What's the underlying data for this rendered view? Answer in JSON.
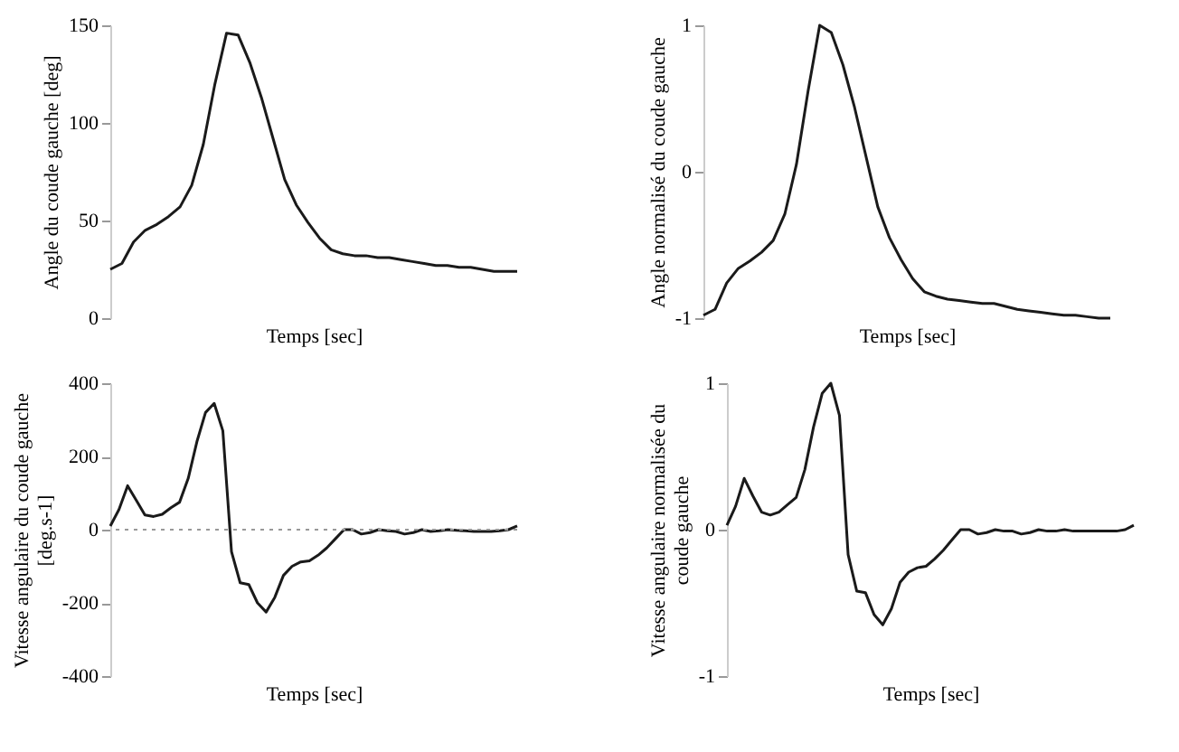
{
  "chart_data": [
    {
      "type": "line",
      "xlabel": "Temps [sec]",
      "ylabel": "Angle du coude gauche [deg]",
      "tick_labels": "y",
      "grid": false,
      "color": "#1a1a1a",
      "ylim": [
        0,
        150
      ],
      "yticks": [
        0,
        50,
        100,
        150
      ],
      "categories": [
        null,
        null,
        null,
        null,
        null,
        null,
        null,
        null,
        null,
        null,
        null,
        null,
        null,
        null,
        null,
        null,
        null,
        null,
        null,
        null,
        null,
        null,
        null,
        null,
        null,
        null,
        null,
        null,
        null,
        null,
        null,
        null,
        null,
        null,
        null,
        null
      ],
      "values": [
        25,
        28,
        39,
        45,
        48,
        52,
        57,
        68,
        89,
        120,
        146,
        145,
        131,
        113,
        92,
        71,
        58,
        49,
        41,
        35,
        33,
        32,
        32,
        31,
        31,
        30,
        29,
        28,
        27,
        27,
        26,
        26,
        25,
        24,
        24,
        24
      ]
    },
    {
      "type": "line",
      "xlabel": "Temps [sec]",
      "ylabel": "Angle normalisé du coude gauche",
      "tick_labels": "y",
      "grid": false,
      "color": "#1a1a1a",
      "ylim": [
        -1,
        1
      ],
      "yticks": [
        -1,
        0,
        1
      ],
      "categories": [
        null,
        null,
        null,
        null,
        null,
        null,
        null,
        null,
        null,
        null,
        null,
        null,
        null,
        null,
        null,
        null,
        null,
        null,
        null,
        null,
        null,
        null,
        null,
        null,
        null,
        null,
        null,
        null,
        null,
        null,
        null,
        null,
        null,
        null,
        null,
        null
      ],
      "values": [
        -0.98,
        -0.94,
        -0.76,
        -0.66,
        -0.61,
        -0.55,
        -0.47,
        -0.29,
        0.05,
        0.55,
        1.0,
        0.95,
        0.73,
        0.44,
        0.1,
        -0.24,
        -0.45,
        -0.6,
        -0.73,
        -0.82,
        -0.85,
        -0.87,
        -0.88,
        -0.89,
        -0.9,
        -0.9,
        -0.92,
        -0.94,
        -0.95,
        -0.96,
        -0.97,
        -0.98,
        -0.98,
        -0.99,
        -1,
        -1
      ]
    },
    {
      "type": "line",
      "xlabel": "Temps [sec]",
      "ylabel": "Vitesse angulaire du coude gauche\n[deg.s-1]",
      "tick_labels": "y",
      "grid": false,
      "color": "#1a1a1a",
      "ylim": [
        -400,
        400
      ],
      "yticks": [
        -400,
        -200,
        0,
        200,
        400
      ],
      "ref_lines": [
        {
          "axis": "y",
          "value": 0,
          "color": "#999999",
          "line_style": "dotted"
        }
      ],
      "categories": [
        null,
        null,
        null,
        null,
        null,
        null,
        null,
        null,
        null,
        null,
        null,
        null,
        null,
        null,
        null,
        null,
        null,
        null,
        null,
        null,
        null,
        null,
        null,
        null,
        null,
        null,
        null,
        null,
        null,
        null,
        null,
        null,
        null,
        null,
        null,
        null,
        null,
        null,
        null,
        null,
        null,
        null,
        null,
        null,
        null,
        null,
        null,
        null
      ],
      "values": [
        10,
        55,
        120,
        80,
        40,
        36,
        42,
        60,
        75,
        140,
        240,
        320,
        345,
        270,
        -60,
        -145,
        -150,
        -200,
        -225,
        -185,
        -125,
        -100,
        -88,
        -85,
        -70,
        -50,
        -25,
        0,
        0,
        -12,
        -8,
        0,
        -3,
        -5,
        -12,
        -8,
        0,
        -5,
        -3,
        0,
        -2,
        -3,
        -5,
        -5,
        -5,
        -3,
        0,
        10
      ]
    },
    {
      "type": "line",
      "xlabel": "Temps [sec]",
      "ylabel": "Vitesse angulaire normalisée du\ncoude gauche",
      "tick_labels": "y",
      "grid": false,
      "color": "#1a1a1a",
      "ylim": [
        -1,
        1
      ],
      "yticks": [
        -1,
        0,
        1
      ],
      "categories": [
        null,
        null,
        null,
        null,
        null,
        null,
        null,
        null,
        null,
        null,
        null,
        null,
        null,
        null,
        null,
        null,
        null,
        null,
        null,
        null,
        null,
        null,
        null,
        null,
        null,
        null,
        null,
        null,
        null,
        null,
        null,
        null,
        null,
        null,
        null,
        null,
        null,
        null,
        null,
        null,
        null,
        null,
        null,
        null,
        null,
        null,
        null,
        null
      ],
      "values": [
        0.03,
        0.16,
        0.35,
        0.23,
        0.12,
        0.1,
        0.12,
        0.17,
        0.22,
        0.41,
        0.7,
        0.93,
        1.0,
        0.78,
        -0.17,
        -0.42,
        -0.43,
        -0.58,
        -0.65,
        -0.54,
        -0.36,
        -0.29,
        -0.26,
        -0.25,
        -0.2,
        -0.14,
        -0.07,
        0,
        0,
        -0.03,
        -0.02,
        0,
        -0.01,
        -0.01,
        -0.03,
        -0.02,
        0,
        -0.01,
        -0.01,
        0,
        -0.01,
        -0.01,
        -0.01,
        -0.01,
        -0.01,
        -0.01,
        0,
        0.03
      ]
    }
  ]
}
